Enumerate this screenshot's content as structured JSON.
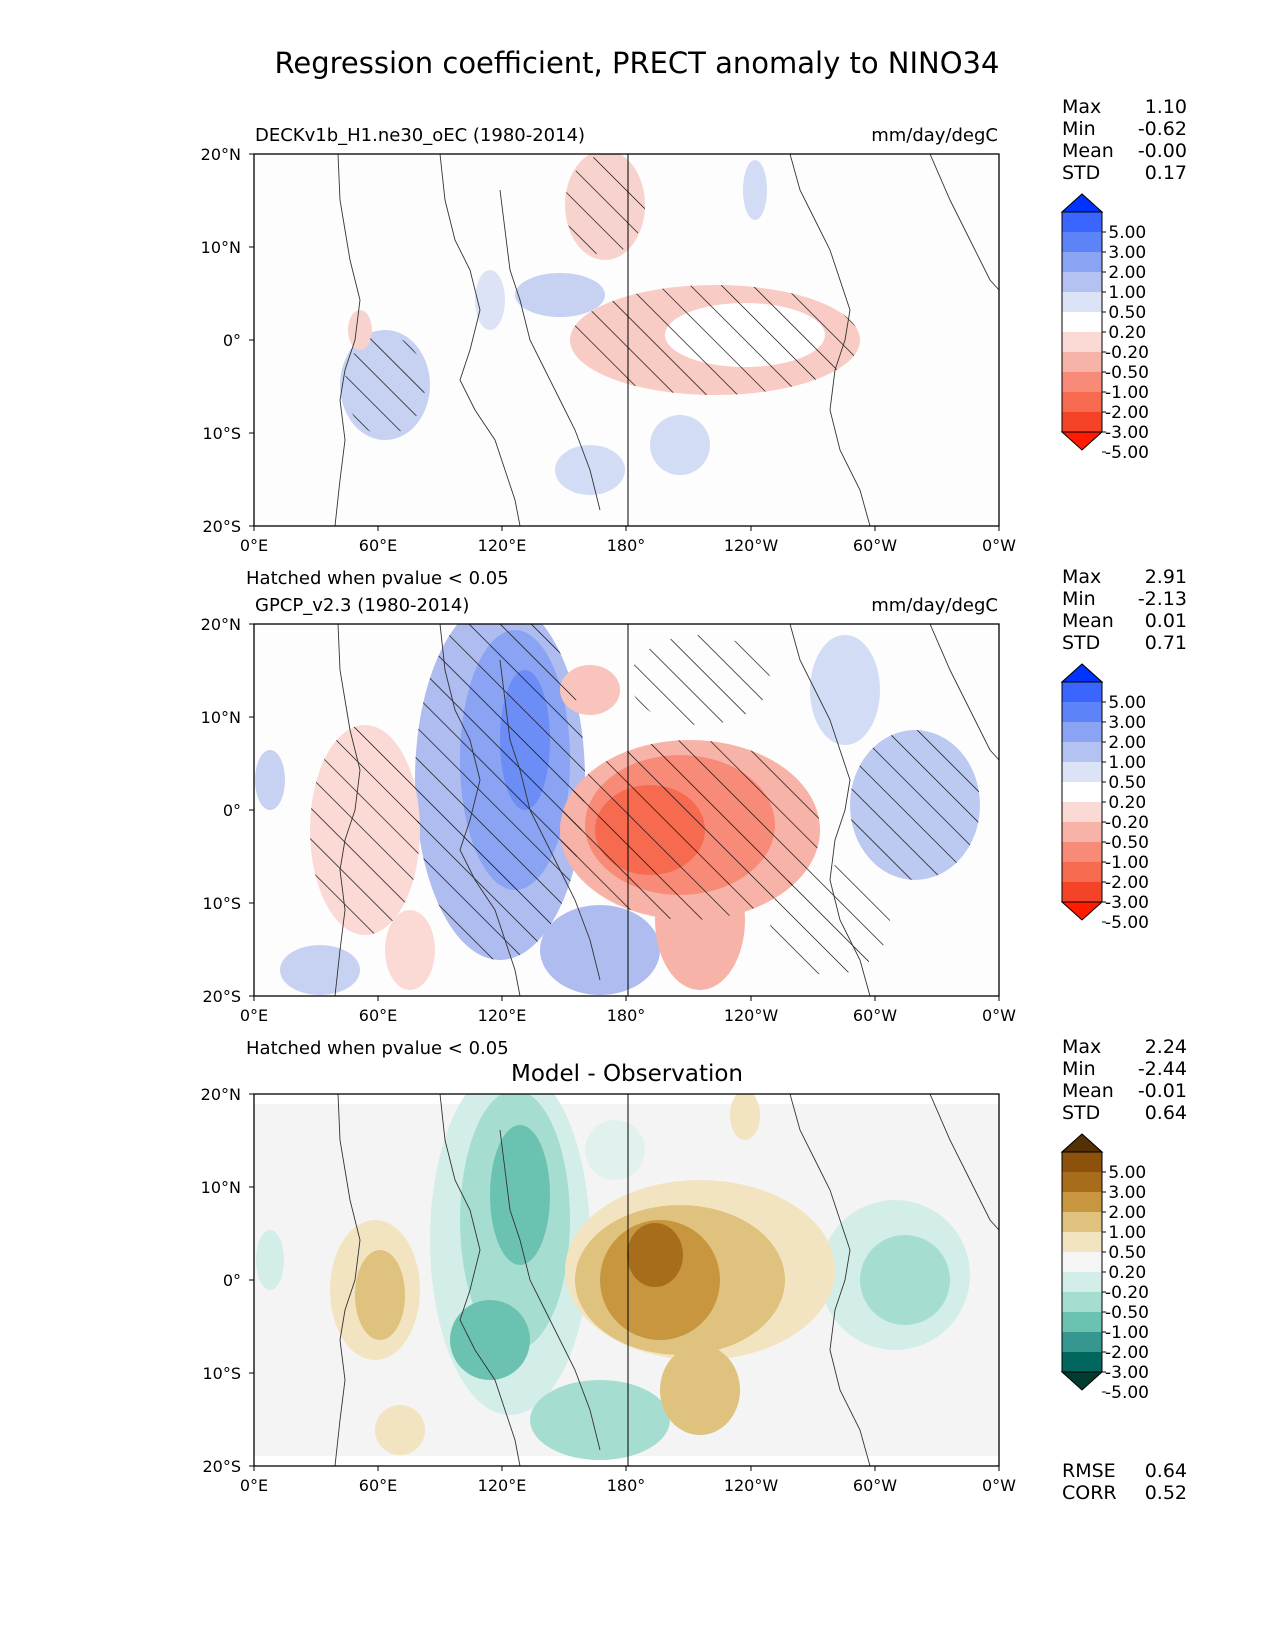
{
  "figure": {
    "title": "Regression coefficient, PRECT anomaly to NINO34",
    "rmse_label": "RMSE",
    "rmse_value": "0.64",
    "corr_label": "CORR",
    "corr_value": "0.52"
  },
  "chart_data": [
    {
      "type": "heatmap",
      "name": "model",
      "title_left": "DECKv1b_H1.ne30_oEC (1980-2014)",
      "title_right": "mm/day/degC",
      "note_below": "Hatched when pvalue < 0.05",
      "stats": [
        {
          "label": "Max",
          "value": "1.10"
        },
        {
          "label": "Min",
          "value": "-0.62"
        },
        {
          "label": "Mean",
          "value": "-0.00"
        },
        {
          "label": "STD",
          "value": "0.17"
        }
      ],
      "xticks": [
        "0°E",
        "60°E",
        "120°E",
        "180°",
        "120°W",
        "60°W",
        "0°W"
      ],
      "yticks": [
        "20°N",
        "10°N",
        "0°",
        "10°S",
        "20°S"
      ],
      "colorbar": {
        "colors": [
          "#0033ff",
          "#3a66ff",
          "#5c83f7",
          "#8aa3f2",
          "#b3c2f0",
          "#dde3f6",
          "#ffffff",
          "#fbdad6",
          "#f8b3a8",
          "#f78b78",
          "#f66a50",
          "#f44326",
          "#ff1a00"
        ],
        "labels": [
          "5.00",
          "3.00",
          "2.00",
          "1.00",
          "0.50",
          "0.20",
          "-0.20",
          "-0.50",
          "-1.00",
          "-2.00",
          "-3.00",
          "-5.00"
        ]
      }
    },
    {
      "type": "heatmap",
      "name": "observation",
      "title_left": "GPCP_v2.3 (1980-2014)",
      "title_right": "mm/day/degC",
      "note_below": "Hatched when pvalue < 0.05",
      "stats": [
        {
          "label": "Max",
          "value": "2.91"
        },
        {
          "label": "Min",
          "value": "-2.13"
        },
        {
          "label": "Mean",
          "value": "0.01"
        },
        {
          "label": "STD",
          "value": "0.71"
        }
      ],
      "xticks": [
        "0°E",
        "60°E",
        "120°E",
        "180°",
        "120°W",
        "60°W",
        "0°W"
      ],
      "yticks": [
        "20°N",
        "10°N",
        "0°",
        "10°S",
        "20°S"
      ],
      "colorbar": {
        "colors": [
          "#0033ff",
          "#3a66ff",
          "#5c83f7",
          "#8aa3f2",
          "#b3c2f0",
          "#dde3f6",
          "#ffffff",
          "#fbdad6",
          "#f8b3a8",
          "#f78b78",
          "#f66a50",
          "#f44326",
          "#ff1a00"
        ],
        "labels": [
          "5.00",
          "3.00",
          "2.00",
          "1.00",
          "0.50",
          "0.20",
          "-0.20",
          "-0.50",
          "-1.00",
          "-2.00",
          "-3.00",
          "-5.00"
        ]
      }
    },
    {
      "type": "heatmap",
      "name": "difference",
      "title_center": "Model - Observation",
      "stats": [
        {
          "label": "Max",
          "value": "2.24"
        },
        {
          "label": "Min",
          "value": "-2.44"
        },
        {
          "label": "Mean",
          "value": "-0.01"
        },
        {
          "label": "STD",
          "value": "0.64"
        }
      ],
      "xticks": [
        "0°E",
        "60°E",
        "120°E",
        "180°",
        "120°W",
        "60°W",
        "0°W"
      ],
      "yticks": [
        "20°N",
        "10°N",
        "0°",
        "10°S",
        "20°S"
      ],
      "colorbar": {
        "colors": [
          "#543005",
          "#8c510a",
          "#a86d1b",
          "#c7963f",
          "#dfc27d",
          "#f2e4c0",
          "#f5f5f5",
          "#d3eee9",
          "#a6ddd1",
          "#6cc2b0",
          "#35978f",
          "#01665e",
          "#003c30"
        ],
        "labels": [
          "5.00",
          "3.00",
          "2.00",
          "1.00",
          "0.50",
          "0.20",
          "-0.20",
          "-0.50",
          "-1.00",
          "-2.00",
          "-3.00",
          "-5.00"
        ]
      }
    }
  ]
}
